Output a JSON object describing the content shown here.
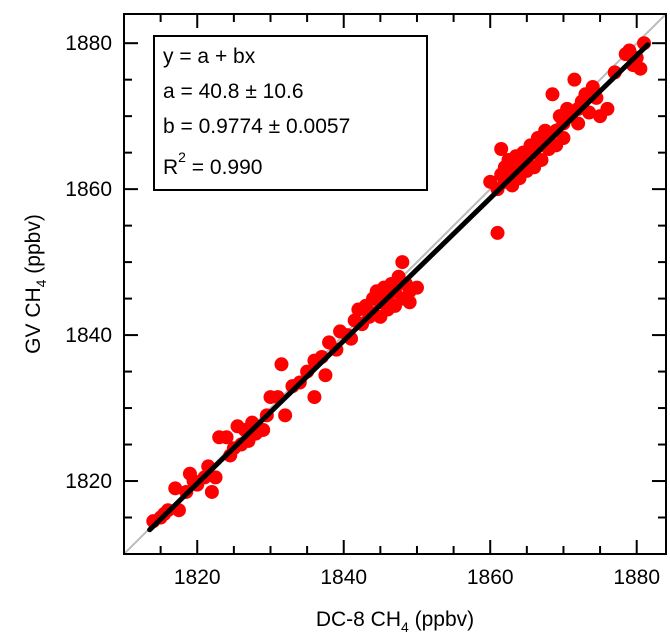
{
  "chart_data": {
    "type": "scatter",
    "xlabel": {
      "prefix": "DC-8 CH",
      "sub": "4",
      "suffix": " (ppbv)"
    },
    "ylabel": {
      "prefix": "GV CH",
      "sub": "4",
      "suffix": " (ppbv)"
    },
    "xlim": [
      1810,
      1884
    ],
    "ylim": [
      1810,
      1884
    ],
    "x_ticks": [
      1820,
      1840,
      1860,
      1880
    ],
    "y_ticks": [
      1820,
      1840,
      1860,
      1880
    ],
    "x_tick_labels": [
      "1820",
      "1840",
      "1860",
      "1880"
    ],
    "y_tick_labels": [
      "1820",
      "1840",
      "1860",
      "1880"
    ],
    "grid": false,
    "stats": {
      "line1": "y = a + bx",
      "line2": "a = 40.8 ± 10.6",
      "line3": "b = 0.9774 ± 0.0057",
      "line4_base": "R",
      "line4_sup": "2",
      "line4_rest": " = 0.990"
    },
    "fit": {
      "a": 40.8,
      "b": 0.9774,
      "x_range": [
        1813.5,
        1881.5
      ]
    },
    "one_to_one": true,
    "colors": {
      "points": "#ff0000",
      "fit": "#000000",
      "one_to_one": "#bbbbbb"
    },
    "points": [
      [
        1814,
        1814.5
      ],
      [
        1815,
        1815
      ],
      [
        1815.5,
        1815.5
      ],
      [
        1816,
        1816
      ],
      [
        1817,
        1819
      ],
      [
        1817.5,
        1816
      ],
      [
        1818.5,
        1818.5
      ],
      [
        1819,
        1821
      ],
      [
        1819.5,
        1820
      ],
      [
        1820,
        1819.5
      ],
      [
        1821,
        1820.5
      ],
      [
        1821.5,
        1822
      ],
      [
        1822,
        1818.5
      ],
      [
        1822.5,
        1820.5
      ],
      [
        1823,
        1826
      ],
      [
        1824,
        1826
      ],
      [
        1824.5,
        1823.5
      ],
      [
        1825,
        1824.5
      ],
      [
        1825.5,
        1827.5
      ],
      [
        1826,
        1825
      ],
      [
        1826.5,
        1827
      ],
      [
        1827,
        1825.5
      ],
      [
        1827.5,
        1828
      ],
      [
        1828,
        1826.5
      ],
      [
        1829,
        1827
      ],
      [
        1829.5,
        1829
      ],
      [
        1830,
        1831.5
      ],
      [
        1831,
        1831.5
      ],
      [
        1831.5,
        1836
      ],
      [
        1832,
        1829
      ],
      [
        1833,
        1833
      ],
      [
        1834,
        1833.5
      ],
      [
        1835,
        1835
      ],
      [
        1836,
        1831.5
      ],
      [
        1836,
        1836.5
      ],
      [
        1837,
        1837
      ],
      [
        1837.5,
        1834.5
      ],
      [
        1838,
        1839
      ],
      [
        1839,
        1838
      ],
      [
        1839.5,
        1840.5
      ],
      [
        1840.5,
        1840
      ],
      [
        1841,
        1839.5
      ],
      [
        1841.5,
        1842
      ],
      [
        1842,
        1843.5
      ],
      [
        1842.5,
        1841.5
      ],
      [
        1843,
        1844
      ],
      [
        1843.5,
        1842.5
      ],
      [
        1844,
        1845
      ],
      [
        1844,
        1843
      ],
      [
        1844.5,
        1846
      ],
      [
        1845,
        1844.5
      ],
      [
        1845,
        1842.5
      ],
      [
        1845.5,
        1846.5
      ],
      [
        1846,
        1845
      ],
      [
        1846,
        1843.5
      ],
      [
        1846.5,
        1847
      ],
      [
        1847,
        1846
      ],
      [
        1847,
        1844
      ],
      [
        1847.5,
        1848
      ],
      [
        1848,
        1850
      ],
      [
        1848,
        1845
      ],
      [
        1848.5,
        1847
      ],
      [
        1849,
        1846
      ],
      [
        1849,
        1844.5
      ],
      [
        1850,
        1846.5
      ],
      [
        1860,
        1861
      ],
      [
        1861,
        1854
      ],
      [
        1861,
        1860
      ],
      [
        1861.5,
        1862
      ],
      [
        1861.5,
        1865.5
      ],
      [
        1862,
        1863
      ],
      [
        1862,
        1861
      ],
      [
        1862.5,
        1864
      ],
      [
        1863,
        1862.5
      ],
      [
        1863,
        1860.5
      ],
      [
        1863.5,
        1864.5
      ],
      [
        1864,
        1863
      ],
      [
        1864,
        1861.5
      ],
      [
        1864.5,
        1865
      ],
      [
        1865,
        1864
      ],
      [
        1865,
        1862.5
      ],
      [
        1865.5,
        1866
      ],
      [
        1866,
        1865
      ],
      [
        1866,
        1863
      ],
      [
        1866.5,
        1867
      ],
      [
        1867,
        1866
      ],
      [
        1867,
        1864
      ],
      [
        1867.5,
        1868
      ],
      [
        1868,
        1867
      ],
      [
        1868,
        1865.5
      ],
      [
        1868.5,
        1873
      ],
      [
        1869,
        1868
      ],
      [
        1869,
        1866
      ],
      [
        1869.5,
        1870
      ],
      [
        1870,
        1869
      ],
      [
        1870,
        1867
      ],
      [
        1870.5,
        1871
      ],
      [
        1871,
        1870
      ],
      [
        1871.5,
        1875
      ],
      [
        1872,
        1871
      ],
      [
        1872,
        1869
      ],
      [
        1872.5,
        1872
      ],
      [
        1873,
        1873
      ],
      [
        1873.5,
        1870.5
      ],
      [
        1874,
        1874
      ],
      [
        1874.5,
        1872.5
      ],
      [
        1875,
        1870
      ],
      [
        1876,
        1871
      ],
      [
        1877,
        1876
      ],
      [
        1878.5,
        1878.5
      ],
      [
        1879,
        1879
      ],
      [
        1879.5,
        1877
      ],
      [
        1880,
        1878
      ],
      [
        1880.5,
        1876.5
      ],
      [
        1881,
        1880
      ]
    ]
  }
}
